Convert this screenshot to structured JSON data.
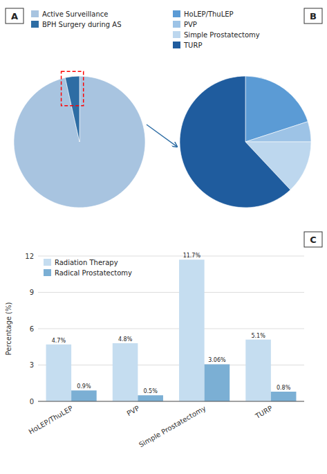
{
  "chart_data": [
    {
      "type": "pie",
      "title": "A",
      "categories": [
        "Active Surveillance",
        "BPH Surgery during AS"
      ],
      "values": [
        96.5,
        3.5
      ],
      "colors": [
        "#a8c4e0",
        "#2e6da4"
      ],
      "legend": "upper left"
    },
    {
      "type": "pie",
      "title": "B",
      "categories": [
        "HoLEP/ThuLEP",
        "PVP",
        "Simple Prostatectomy",
        "TURP"
      ],
      "values": [
        20,
        5,
        13,
        62
      ],
      "colors": [
        "#5b9bd5",
        "#9dc3e6",
        "#bdd7ee",
        "#1f5c9e"
      ],
      "legend": "upper left"
    },
    {
      "type": "bar",
      "title": "C",
      "categories": [
        "HoLEP/ThuLEP",
        "PVP",
        "Simple Prostatectomy",
        "TURP"
      ],
      "series": [
        {
          "name": "Radiation Therapy",
          "color": "#c5ddf0",
          "values": [
            4.7,
            4.8,
            11.7,
            5.1
          ],
          "value_labels": [
            "4.7%",
            "4.8%",
            "11.7%",
            "5.1%"
          ]
        },
        {
          "name": "Radical Prostatectomy",
          "color": "#7bafd4",
          "values": [
            0.9,
            0.5,
            3.06,
            0.8
          ],
          "value_labels": [
            "0.9%",
            "0.5%",
            "3.06%",
            "0.8%"
          ]
        }
      ],
      "ylabel": "Percentage (%)",
      "ylim": [
        0,
        12
      ],
      "yticks": [
        0,
        3,
        6,
        9,
        12
      ],
      "grid": true,
      "legend": "upper left",
      "data_labels": true
    }
  ]
}
